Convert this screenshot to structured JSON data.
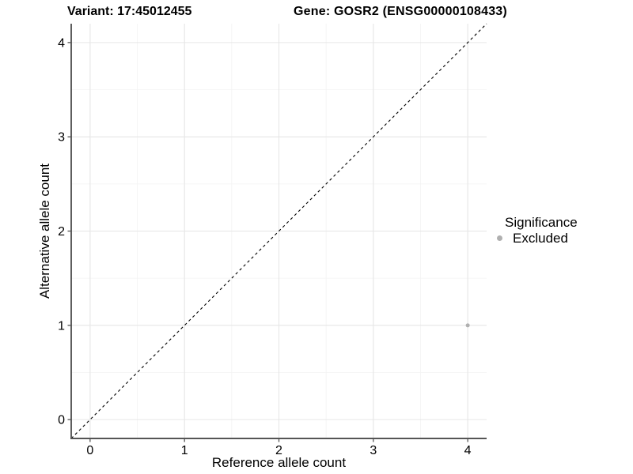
{
  "header": {
    "variant_title": "Variant: 17:45012455",
    "gene_title": "Gene: GOSR2 (ENSG00000108433)"
  },
  "chart_data": {
    "type": "scatter",
    "xlabel": "Reference allele count",
    "ylabel": "Alternative allele count",
    "xlim": [
      -0.2,
      4.2
    ],
    "ylim": [
      -0.2,
      4.2
    ],
    "xticks": [
      0,
      1,
      2,
      3,
      4
    ],
    "yticks": [
      0,
      1,
      2,
      3,
      4
    ],
    "minor_xticks": [
      0.5,
      1.5,
      2.5,
      3.5
    ],
    "minor_yticks": [
      0.5,
      1.5,
      2.5,
      3.5
    ],
    "grid": {
      "on": true,
      "major_color": "#e6e6e6",
      "minor_color": "#f3f3f3"
    },
    "axis_color": "#555555",
    "tick_label_color": "#000000",
    "identity_line": {
      "style": "dashed",
      "color": "#000000",
      "from": [
        -0.2,
        -0.2
      ],
      "to": [
        4.2,
        4.2
      ]
    },
    "series": [
      {
        "name": "Excluded",
        "color": "#b0b0b0",
        "points": [
          {
            "x": 4,
            "y": 1
          }
        ]
      }
    ],
    "legend": {
      "position": "right",
      "title": "Significance",
      "items": [
        {
          "label": "Excluded",
          "color": "#b0b0b0"
        }
      ]
    }
  }
}
